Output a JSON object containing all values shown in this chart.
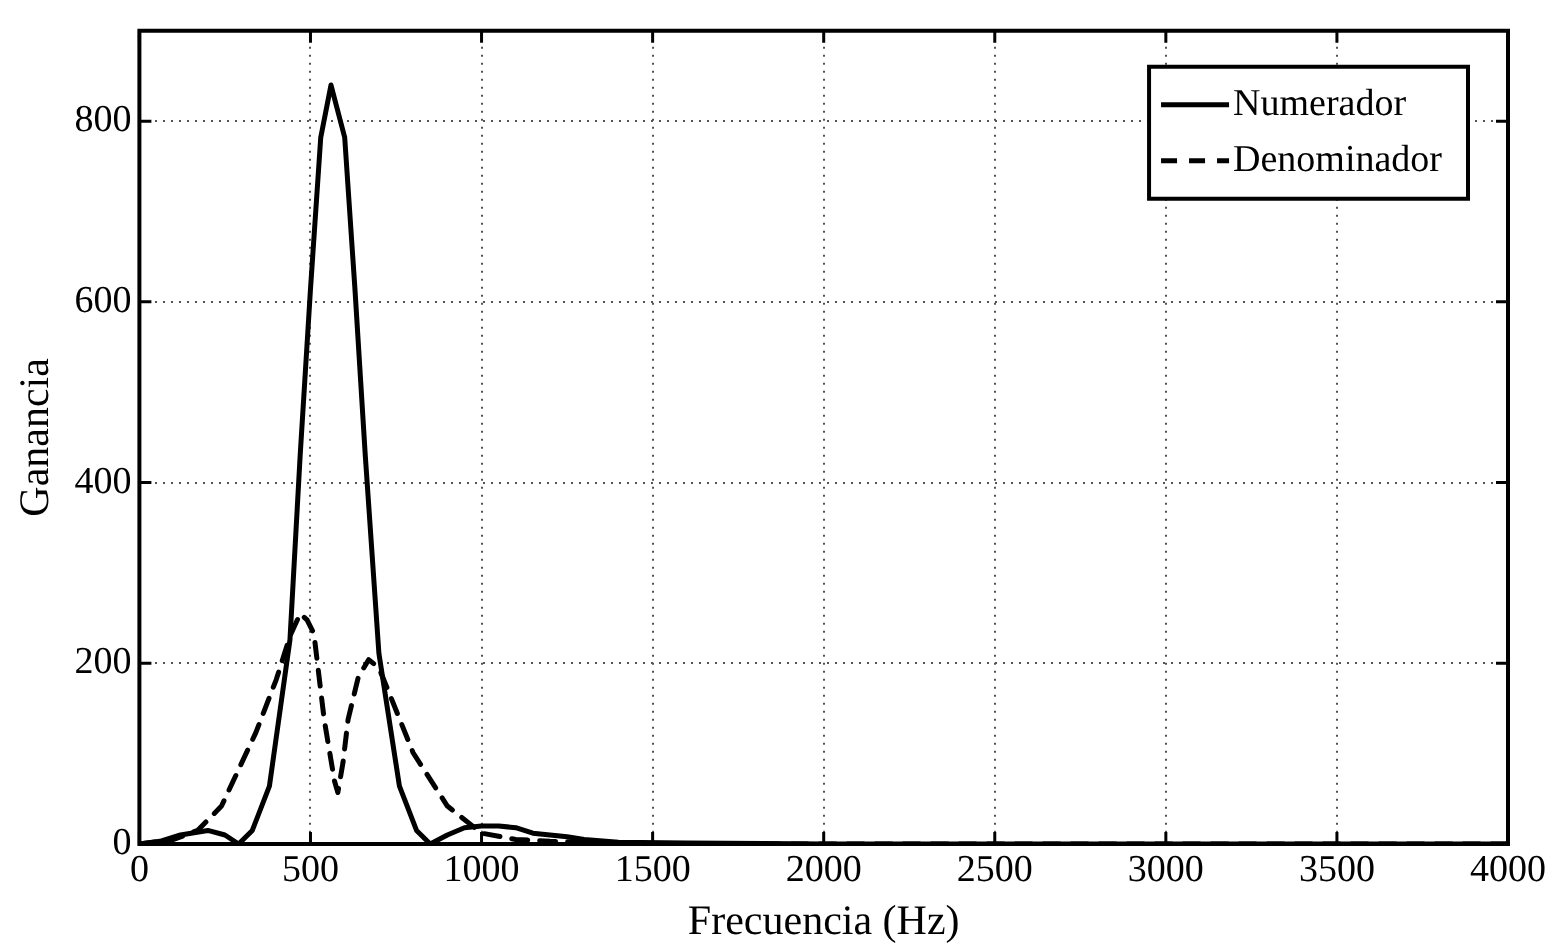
{
  "chart_data": {
    "type": "line",
    "xlabel": "Frecuencia (Hz)",
    "ylabel": "Ganancia",
    "xlim": [
      0,
      4000
    ],
    "xticks": [
      0,
      500,
      1000,
      1500,
      2000,
      2500,
      3000,
      3500,
      4000
    ],
    "ylim": [
      0,
      900
    ],
    "yticks": [
      0,
      200,
      400,
      600,
      800
    ],
    "grid": true,
    "legend": "top right",
    "marker": "none",
    "series": [
      {
        "name": "Numerador",
        "color": "#000000",
        "line_style": "solid",
        "x": [
          0,
          60,
          120,
          200,
          250,
          290,
          330,
          380,
          440,
          470,
          500,
          530,
          560,
          600,
          630,
          660,
          700,
          760,
          810,
          850,
          900,
          950,
          1000,
          1050,
          1100,
          1150,
          1200,
          1250,
          1300,
          1400,
          1600,
          2000,
          2500,
          3000,
          3500,
          4000
        ],
        "values": [
          0,
          3,
          10,
          15,
          10,
          0,
          15,
          64,
          226,
          431,
          614,
          782,
          840,
          782,
          614,
          431,
          211,
          64,
          15,
          0,
          10,
          18,
          20,
          20,
          18,
          12,
          10,
          8,
          5,
          2,
          1,
          0,
          0,
          0,
          0,
          0
        ]
      },
      {
        "name": "Denominador",
        "color": "#000000",
        "line_style": "dashed",
        "x": [
          0,
          100,
          170,
          240,
          340,
          400,
          440,
          470,
          490,
          510,
          540,
          570,
          580,
          595,
          610,
          640,
          670,
          700,
          730,
          800,
          900,
          1000,
          1100,
          1200,
          1300,
          1400,
          1600,
          2000,
          2500,
          3000,
          3500,
          4000
        ],
        "values": [
          0,
          5,
          15,
          42,
          123,
          182,
          230,
          255,
          248,
          233,
          138,
          70,
          57,
          90,
          138,
          185,
          204,
          195,
          167,
          101,
          42,
          12,
          5,
          3,
          2,
          0,
          0,
          0,
          0,
          0,
          0,
          0
        ]
      }
    ]
  }
}
